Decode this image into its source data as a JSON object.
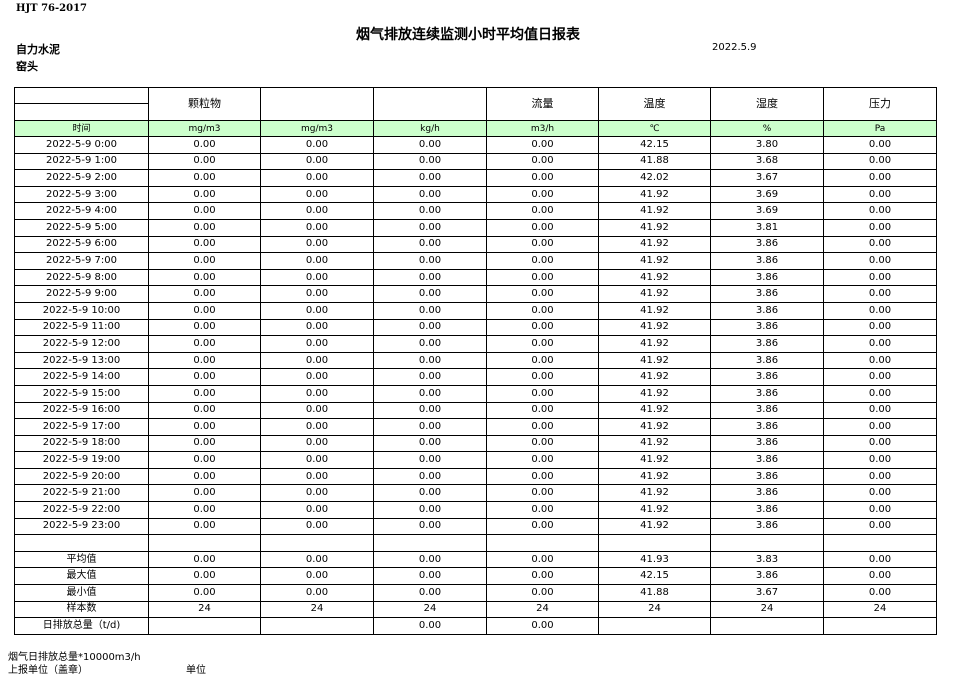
{
  "header": {
    "standard": "HJT  76-2017",
    "title": "烟气排放连续监测小时平均值日报表",
    "company": "自力水泥",
    "site": "窑头",
    "date": "2022.5.9"
  },
  "table": {
    "columns": [
      "",
      "颗粒物",
      "",
      "",
      "流量",
      "温度",
      "湿度",
      "压力"
    ],
    "units": [
      "时间",
      "mg/m3",
      "mg/m3",
      "kg/h",
      "m3/h",
      "℃",
      "%",
      "Pa"
    ],
    "rows": [
      [
        "2022-5-9 0:00",
        "0.00",
        "0.00",
        "0.00",
        "0.00",
        "42.15",
        "3.80",
        "0.00"
      ],
      [
        "2022-5-9 1:00",
        "0.00",
        "0.00",
        "0.00",
        "0.00",
        "41.88",
        "3.68",
        "0.00"
      ],
      [
        "2022-5-9 2:00",
        "0.00",
        "0.00",
        "0.00",
        "0.00",
        "42.02",
        "3.67",
        "0.00"
      ],
      [
        "2022-5-9 3:00",
        "0.00",
        "0.00",
        "0.00",
        "0.00",
        "41.92",
        "3.69",
        "0.00"
      ],
      [
        "2022-5-9 4:00",
        "0.00",
        "0.00",
        "0.00",
        "0.00",
        "41.92",
        "3.69",
        "0.00"
      ],
      [
        "2022-5-9 5:00",
        "0.00",
        "0.00",
        "0.00",
        "0.00",
        "41.92",
        "3.81",
        "0.00"
      ],
      [
        "2022-5-9 6:00",
        "0.00",
        "0.00",
        "0.00",
        "0.00",
        "41.92",
        "3.86",
        "0.00"
      ],
      [
        "2022-5-9 7:00",
        "0.00",
        "0.00",
        "0.00",
        "0.00",
        "41.92",
        "3.86",
        "0.00"
      ],
      [
        "2022-5-9 8:00",
        "0.00",
        "0.00",
        "0.00",
        "0.00",
        "41.92",
        "3.86",
        "0.00"
      ],
      [
        "2022-5-9 9:00",
        "0.00",
        "0.00",
        "0.00",
        "0.00",
        "41.92",
        "3.86",
        "0.00"
      ],
      [
        "2022-5-9 10:00",
        "0.00",
        "0.00",
        "0.00",
        "0.00",
        "41.92",
        "3.86",
        "0.00"
      ],
      [
        "2022-5-9 11:00",
        "0.00",
        "0.00",
        "0.00",
        "0.00",
        "41.92",
        "3.86",
        "0.00"
      ],
      [
        "2022-5-9 12:00",
        "0.00",
        "0.00",
        "0.00",
        "0.00",
        "41.92",
        "3.86",
        "0.00"
      ],
      [
        "2022-5-9 13:00",
        "0.00",
        "0.00",
        "0.00",
        "0.00",
        "41.92",
        "3.86",
        "0.00"
      ],
      [
        "2022-5-9 14:00",
        "0.00",
        "0.00",
        "0.00",
        "0.00",
        "41.92",
        "3.86",
        "0.00"
      ],
      [
        "2022-5-9 15:00",
        "0.00",
        "0.00",
        "0.00",
        "0.00",
        "41.92",
        "3.86",
        "0.00"
      ],
      [
        "2022-5-9 16:00",
        "0.00",
        "0.00",
        "0.00",
        "0.00",
        "41.92",
        "3.86",
        "0.00"
      ],
      [
        "2022-5-9 17:00",
        "0.00",
        "0.00",
        "0.00",
        "0.00",
        "41.92",
        "3.86",
        "0.00"
      ],
      [
        "2022-5-9 18:00",
        "0.00",
        "0.00",
        "0.00",
        "0.00",
        "41.92",
        "3.86",
        "0.00"
      ],
      [
        "2022-5-9 19:00",
        "0.00",
        "0.00",
        "0.00",
        "0.00",
        "41.92",
        "3.86",
        "0.00"
      ],
      [
        "2022-5-9 20:00",
        "0.00",
        "0.00",
        "0.00",
        "0.00",
        "41.92",
        "3.86",
        "0.00"
      ],
      [
        "2022-5-9 21:00",
        "0.00",
        "0.00",
        "0.00",
        "0.00",
        "41.92",
        "3.86",
        "0.00"
      ],
      [
        "2022-5-9 22:00",
        "0.00",
        "0.00",
        "0.00",
        "0.00",
        "41.92",
        "3.86",
        "0.00"
      ],
      [
        "2022-5-9 23:00",
        "0.00",
        "0.00",
        "0.00",
        "0.00",
        "41.92",
        "3.86",
        "0.00"
      ]
    ],
    "summary": [
      [
        "平均值",
        "0.00",
        "0.00",
        "0.00",
        "0.00",
        "41.93",
        "3.83",
        "0.00"
      ],
      [
        "最大值",
        "0.00",
        "0.00",
        "0.00",
        "0.00",
        "42.15",
        "3.86",
        "0.00"
      ],
      [
        "最小值",
        "0.00",
        "0.00",
        "0.00",
        "0.00",
        "41.88",
        "3.67",
        "0.00"
      ],
      [
        "样本数",
        "24",
        "24",
        "24",
        "24",
        "24",
        "24",
        "24"
      ],
      [
        "日排放总量（t/d)",
        "",
        "",
        "0.00",
        "0.00",
        "",
        "",
        ""
      ]
    ]
  },
  "footer": {
    "note": "烟气日排放总量*10000m3/h",
    "reporter": "上报单位（盖章）",
    "unit": "单位"
  }
}
